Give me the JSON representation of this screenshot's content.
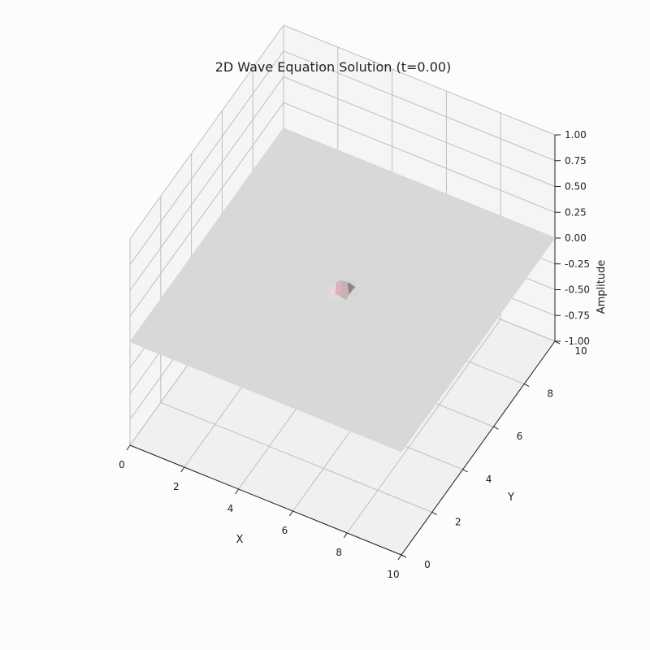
{
  "chart_data": {
    "type": "surface3d",
    "title": "2D Wave Equation Solution (t=0.00)",
    "xlabel": "X",
    "ylabel": "Y",
    "zlabel": "Amplitude",
    "xlim": [
      0,
      10
    ],
    "ylim": [
      0,
      10
    ],
    "zlim": [
      -1,
      1
    ],
    "x_ticks": [
      0,
      2,
      4,
      6,
      8,
      10
    ],
    "y_ticks": [
      0,
      2,
      4,
      6,
      8,
      10
    ],
    "z_ticks": [
      "-1.00",
      "-0.75",
      "-0.50",
      "-0.25",
      "0.00",
      "0.25",
      "0.50",
      "0.75",
      "1.00"
    ],
    "grid": true,
    "colormap": "coolwarm",
    "surface": {
      "function": "gaussian",
      "amplitude": 1.0,
      "center_x": 5,
      "center_y": 5,
      "grid_points": 50
    },
    "colors": {
      "low": "#3b4cc0",
      "mid": "#dddddd",
      "high": "#b40426",
      "pane": "#fcfcfc",
      "grid": "#bfbfbf"
    }
  }
}
